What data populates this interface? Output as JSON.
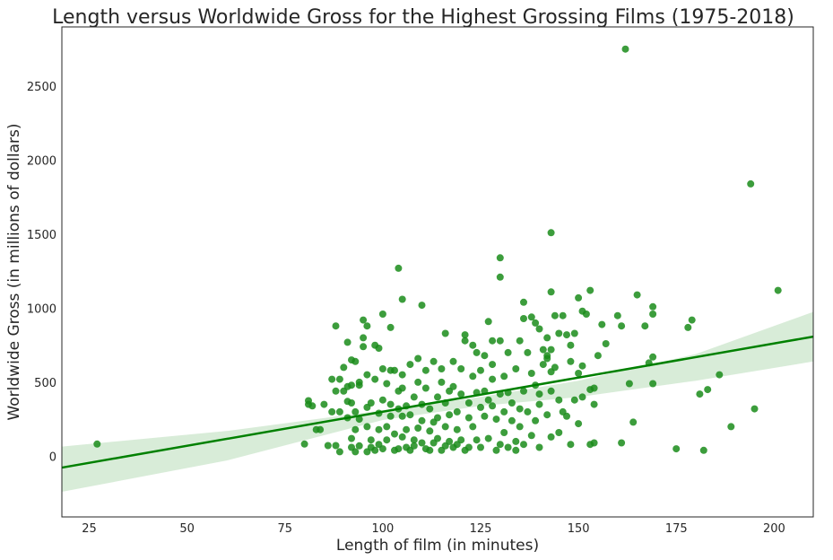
{
  "chart_data": {
    "type": "scatter",
    "title": "Length versus Worldwide Gross for the Highest Grossing Films (1975-2018)",
    "xlabel": "Length of film (in minutes)",
    "ylabel": "Worldwide Gross (in millions of dollars)",
    "xlim": [
      18,
      210
    ],
    "ylim": [
      -410,
      2900
    ],
    "x_ticks": [
      25,
      50,
      75,
      100,
      125,
      150,
      175,
      200
    ],
    "y_ticks": [
      0,
      500,
      1000,
      1500,
      2000,
      2500
    ],
    "grid": false,
    "legend": "none",
    "colors": {
      "point": "#1a8c1a",
      "line": "#008000",
      "band": "#a8d5a8"
    },
    "regression": {
      "x": [
        18,
        210
      ],
      "y": [
        -77,
        808
      ]
    },
    "confidence_band": {
      "x": [
        18,
        60,
        100,
        125,
        150,
        180,
        210
      ],
      "upper": [
        65,
        170,
        310,
        400,
        510,
        690,
        975
      ],
      "lower": [
        -240,
        -30,
        245,
        340,
        400,
        510,
        640
      ]
    },
    "points": [
      [
        27,
        82
      ],
      [
        80,
        82
      ],
      [
        81,
        350
      ],
      [
        81,
        375
      ],
      [
        82,
        340
      ],
      [
        83,
        180
      ],
      [
        84,
        180
      ],
      [
        85,
        350
      ],
      [
        86,
        72
      ],
      [
        87,
        300
      ],
      [
        87,
        520
      ],
      [
        88,
        72
      ],
      [
        88,
        440
      ],
      [
        88,
        880
      ],
      [
        89,
        30
      ],
      [
        89,
        300
      ],
      [
        89,
        520
      ],
      [
        90,
        440
      ],
      [
        90,
        600
      ],
      [
        91,
        770
      ],
      [
        91,
        260
      ],
      [
        91,
        370
      ],
      [
        91,
        470
      ],
      [
        92,
        650
      ],
      [
        92,
        60
      ],
      [
        92,
        120
      ],
      [
        92,
        480
      ],
      [
        92,
        360
      ],
      [
        93,
        300
      ],
      [
        93,
        640
      ],
      [
        93,
        180
      ],
      [
        93,
        30
      ],
      [
        94,
        480
      ],
      [
        94,
        500
      ],
      [
        94,
        250
      ],
      [
        94,
        70
      ],
      [
        95,
        920
      ],
      [
        95,
        800
      ],
      [
        95,
        740
      ],
      [
        96,
        880
      ],
      [
        96,
        550
      ],
      [
        96,
        30
      ],
      [
        96,
        200
      ],
      [
        96,
        330
      ],
      [
        97,
        360
      ],
      [
        97,
        110
      ],
      [
        97,
        60
      ],
      [
        98,
        40
      ],
      [
        98,
        750
      ],
      [
        98,
        520
      ],
      [
        99,
        290
      ],
      [
        99,
        180
      ],
      [
        99,
        730
      ],
      [
        99,
        80
      ],
      [
        100,
        960
      ],
      [
        100,
        50
      ],
      [
        100,
        380
      ],
      [
        100,
        590
      ],
      [
        101,
        200
      ],
      [
        101,
        490
      ],
      [
        101,
        110
      ],
      [
        102,
        870
      ],
      [
        102,
        580
      ],
      [
        102,
        350
      ],
      [
        102,
        270
      ],
      [
        103,
        580
      ],
      [
        103,
        40
      ],
      [
        103,
        150
      ],
      [
        104,
        1270
      ],
      [
        104,
        320
      ],
      [
        104,
        440
      ],
      [
        104,
        50
      ],
      [
        105,
        1060
      ],
      [
        105,
        460
      ],
      [
        105,
        550
      ],
      [
        105,
        270
      ],
      [
        105,
        130
      ],
      [
        106,
        60
      ],
      [
        106,
        180
      ],
      [
        106,
        340
      ],
      [
        107,
        40
      ],
      [
        107,
        280
      ],
      [
        107,
        620
      ],
      [
        108,
        110
      ],
      [
        108,
        400
      ],
      [
        108,
        70
      ],
      [
        109,
        190
      ],
      [
        109,
        500
      ],
      [
        109,
        660
      ],
      [
        110,
        1020
      ],
      [
        110,
        350
      ],
      [
        110,
        240
      ],
      [
        110,
        90
      ],
      [
        111,
        460
      ],
      [
        111,
        50
      ],
      [
        111,
        580
      ],
      [
        112,
        170
      ],
      [
        112,
        40
      ],
      [
        112,
        320
      ],
      [
        113,
        640
      ],
      [
        113,
        230
      ],
      [
        113,
        90
      ],
      [
        114,
        400
      ],
      [
        114,
        260
      ],
      [
        114,
        120
      ],
      [
        115,
        500
      ],
      [
        115,
        40
      ],
      [
        115,
        590
      ],
      [
        116,
        830
      ],
      [
        116,
        360
      ],
      [
        116,
        200
      ],
      [
        116,
        70
      ],
      [
        117,
        440
      ],
      [
        117,
        280
      ],
      [
        117,
        100
      ],
      [
        118,
        640
      ],
      [
        118,
        470
      ],
      [
        118,
        60
      ],
      [
        119,
        300
      ],
      [
        119,
        180
      ],
      [
        119,
        80
      ],
      [
        120,
        420
      ],
      [
        120,
        590
      ],
      [
        120,
        110
      ],
      [
        121,
        820
      ],
      [
        121,
        780
      ],
      [
        121,
        40
      ],
      [
        122,
        360
      ],
      [
        122,
        260
      ],
      [
        122,
        60
      ],
      [
        123,
        750
      ],
      [
        123,
        540
      ],
      [
        123,
        200
      ],
      [
        124,
        430
      ],
      [
        124,
        110
      ],
      [
        124,
        700
      ],
      [
        125,
        330
      ],
      [
        125,
        580
      ],
      [
        125,
        60
      ],
      [
        126,
        680
      ],
      [
        126,
        440
      ],
      [
        126,
        270
      ],
      [
        127,
        910
      ],
      [
        127,
        380
      ],
      [
        127,
        120
      ],
      [
        128,
        780
      ],
      [
        128,
        620
      ],
      [
        128,
        520
      ],
      [
        128,
        340
      ],
      [
        129,
        250
      ],
      [
        129,
        40
      ],
      [
        130,
        1340
      ],
      [
        130,
        1210
      ],
      [
        130,
        780
      ],
      [
        130,
        420
      ],
      [
        130,
        80
      ],
      [
        131,
        540
      ],
      [
        131,
        300
      ],
      [
        131,
        160
      ],
      [
        132,
        700
      ],
      [
        132,
        430
      ],
      [
        132,
        60
      ],
      [
        133,
        360
      ],
      [
        133,
        240
      ],
      [
        134,
        590
      ],
      [
        134,
        100
      ],
      [
        134,
        40
      ],
      [
        135,
        320
      ],
      [
        135,
        780
      ],
      [
        135,
        200
      ],
      [
        136,
        1040
      ],
      [
        136,
        930
      ],
      [
        136,
        440
      ],
      [
        136,
        80
      ],
      [
        137,
        700
      ],
      [
        137,
        300
      ],
      [
        138,
        940
      ],
      [
        138,
        560
      ],
      [
        138,
        140
      ],
      [
        139,
        900
      ],
      [
        139,
        480
      ],
      [
        139,
        240
      ],
      [
        140,
        860
      ],
      [
        140,
        420
      ],
      [
        140,
        350
      ],
      [
        140,
        60
      ],
      [
        141,
        720
      ],
      [
        141,
        620
      ],
      [
        142,
        800
      ],
      [
        142,
        680
      ],
      [
        142,
        660
      ],
      [
        142,
        280
      ],
      [
        143,
        1510
      ],
      [
        143,
        1110
      ],
      [
        143,
        720
      ],
      [
        143,
        570
      ],
      [
        143,
        440
      ],
      [
        143,
        130
      ],
      [
        144,
        950
      ],
      [
        144,
        600
      ],
      [
        145,
        830
      ],
      [
        145,
        380
      ],
      [
        145,
        160
      ],
      [
        146,
        950
      ],
      [
        146,
        300
      ],
      [
        147,
        820
      ],
      [
        147,
        270
      ],
      [
        148,
        750
      ],
      [
        148,
        640
      ],
      [
        148,
        80
      ],
      [
        149,
        830
      ],
      [
        149,
        380
      ],
      [
        150,
        1070
      ],
      [
        150,
        560
      ],
      [
        150,
        220
      ],
      [
        151,
        980
      ],
      [
        151,
        610
      ],
      [
        151,
        400
      ],
      [
        152,
        960
      ],
      [
        153,
        1120
      ],
      [
        153,
        450
      ],
      [
        153,
        80
      ],
      [
        154,
        90
      ],
      [
        154,
        350
      ],
      [
        154,
        460
      ],
      [
        155,
        680
      ],
      [
        156,
        890
      ],
      [
        157,
        760
      ],
      [
        160,
        950
      ],
      [
        161,
        880
      ],
      [
        161,
        90
      ],
      [
        162,
        2750
      ],
      [
        163,
        490
      ],
      [
        164,
        230
      ],
      [
        165,
        1090
      ],
      [
        167,
        880
      ],
      [
        168,
        630
      ],
      [
        169,
        1010
      ],
      [
        169,
        960
      ],
      [
        169,
        670
      ],
      [
        169,
        490
      ],
      [
        175,
        50
      ],
      [
        178,
        870
      ],
      [
        179,
        920
      ],
      [
        181,
        420
      ],
      [
        182,
        40
      ],
      [
        183,
        450
      ],
      [
        186,
        550
      ],
      [
        189,
        200
      ],
      [
        194,
        1840
      ],
      [
        195,
        320
      ],
      [
        201,
        1120
      ]
    ]
  }
}
